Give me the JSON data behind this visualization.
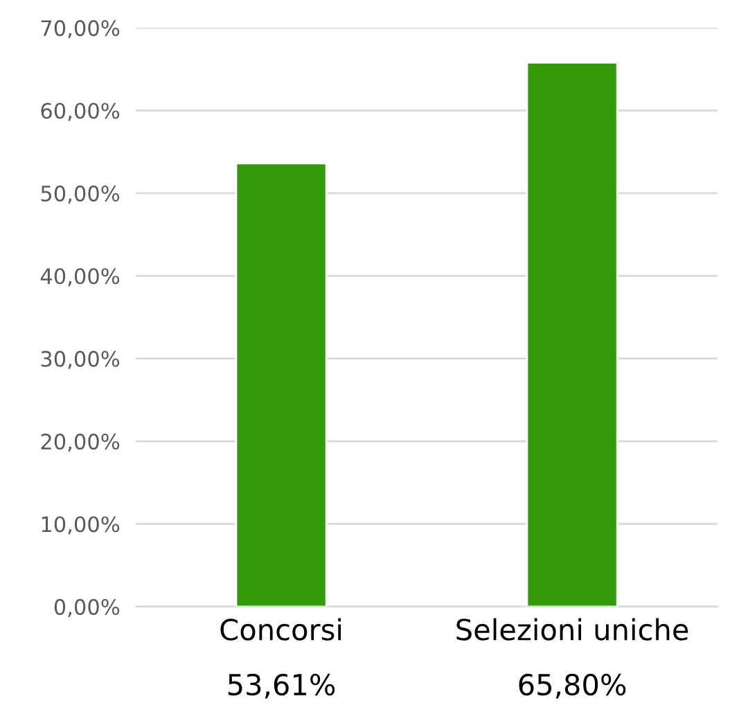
{
  "chart_data": {
    "type": "bar",
    "categories": [
      "Concorsi",
      "Selezioni uniche"
    ],
    "values": [
      53.61,
      65.8
    ],
    "value_labels": [
      "53,61%",
      "65,80%"
    ],
    "color": "#339a0b",
    "ylim": [
      0,
      70
    ],
    "yticks": [
      {
        "value": 0,
        "label": "0,00%"
      },
      {
        "value": 10,
        "label": "10,00%"
      },
      {
        "value": 20,
        "label": "20,00%"
      },
      {
        "value": 30,
        "label": "30,00%"
      },
      {
        "value": 40,
        "label": "40,00%"
      },
      {
        "value": 50,
        "label": "50,00%"
      },
      {
        "value": 60,
        "label": "60,00%"
      },
      {
        "value": 70,
        "label": "70,00%"
      }
    ],
    "grid": "y",
    "legend": false
  }
}
